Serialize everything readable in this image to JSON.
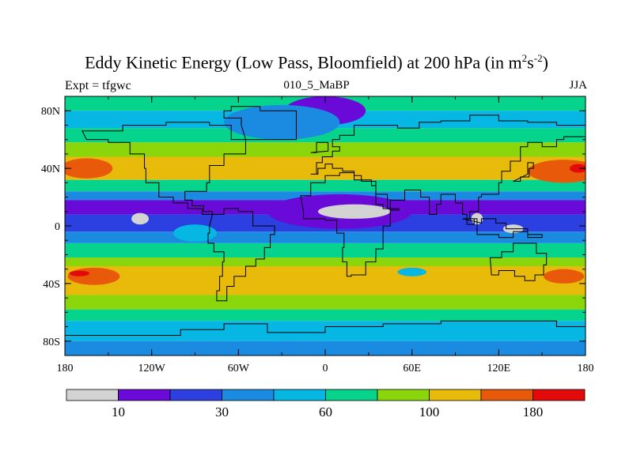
{
  "title_main": "Eddy Kinetic Energy (Low Pass, Bloomfield) at 200 hPa (in m",
  "title_unit_sup1": "2",
  "title_unit_mid": "s",
  "title_unit_sup2": "-2",
  "title_close": ")",
  "subtitle_left": "Expt = tfgwc",
  "subtitle_center": "010_5_MaBP",
  "subtitle_right": "JJA",
  "chart_data": {
    "type": "heatmap",
    "title": "Eddy Kinetic Energy (Low Pass, Bloomfield) at 200 hPa (in m^2 s^-2)",
    "x_ticks": [
      "180",
      "120W",
      "60W",
      "0",
      "60E",
      "120E",
      "180"
    ],
    "x_tick_values": [
      -180,
      -120,
      -60,
      0,
      60,
      120,
      180
    ],
    "y_ticks": [
      "80N",
      "40N",
      "0",
      "40S",
      "80S"
    ],
    "y_tick_values": [
      80,
      40,
      0,
      -40,
      -80
    ],
    "xlim": [
      -180,
      180
    ],
    "ylim": [
      -90,
      90
    ],
    "colorbar": {
      "levels": [
        10,
        20,
        30,
        45,
        60,
        80,
        100,
        140,
        180
      ],
      "labels": [
        "10",
        "30",
        "60",
        "100",
        "180"
      ],
      "label_positions": [
        1,
        3,
        5,
        7,
        9
      ],
      "colors": [
        "#d3d3d3",
        "#6a0ad8",
        "#2c3fe0",
        "#1a8be0",
        "#06b6e3",
        "#06d38c",
        "#8ad60a",
        "#e8bb0a",
        "#e85a0a",
        "#e50a0a"
      ]
    },
    "zonal_bands": [
      {
        "lat_range": [
          90,
          80
        ],
        "level_index": 5
      },
      {
        "lat_range": [
          80,
          68
        ],
        "level_index": 4
      },
      {
        "lat_range": [
          68,
          58
        ],
        "level_index": 5
      },
      {
        "lat_range": [
          58,
          48
        ],
        "level_index": 6
      },
      {
        "lat_range": [
          48,
          32
        ],
        "level_index": 7
      },
      {
        "lat_range": [
          32,
          24
        ],
        "level_index": 5
      },
      {
        "lat_range": [
          24,
          18
        ],
        "level_index": 3
      },
      {
        "lat_range": [
          18,
          8
        ],
        "level_index": 1
      },
      {
        "lat_range": [
          8,
          -4
        ],
        "level_index": 2
      },
      {
        "lat_range": [
          -4,
          -12
        ],
        "level_index": 3
      },
      {
        "lat_range": [
          -12,
          -22
        ],
        "level_index": 5
      },
      {
        "lat_range": [
          -22,
          -28
        ],
        "level_index": 6
      },
      {
        "lat_range": [
          -28,
          -48
        ],
        "level_index": 7
      },
      {
        "lat_range": [
          -48,
          -58
        ],
        "level_index": 6
      },
      {
        "lat_range": [
          -58,
          -66
        ],
        "level_index": 5
      },
      {
        "lat_range": [
          -66,
          -80
        ],
        "level_index": 4
      },
      {
        "lat_range": [
          -80,
          -90
        ],
        "level_index": 3
      }
    ],
    "regional_features": [
      {
        "lon": -165,
        "lat": 40,
        "rx": 18,
        "ry": 7,
        "level_index": 8
      },
      {
        "lon": 165,
        "lat": 38,
        "rx": 25,
        "ry": 8,
        "level_index": 8
      },
      {
        "lon": 175,
        "lat": 40,
        "rx": 6,
        "ry": 3,
        "level_index": 9
      },
      {
        "lon": -160,
        "lat": -35,
        "rx": 18,
        "ry": 6,
        "level_index": 8
      },
      {
        "lon": -170,
        "lat": -33,
        "rx": 7,
        "ry": 2,
        "level_index": 9
      },
      {
        "lon": 165,
        "lat": -35,
        "rx": 14,
        "ry": 5,
        "level_index": 8
      },
      {
        "lon": 0,
        "lat": 80,
        "rx": 28,
        "ry": 10,
        "level_index": 1
      },
      {
        "lon": -30,
        "lat": 72,
        "rx": 40,
        "ry": 12,
        "level_index": 3
      },
      {
        "lon": 10,
        "lat": 10,
        "rx": 50,
        "ry": 12,
        "level_index": 1
      },
      {
        "lon": 20,
        "lat": 10,
        "rx": 25,
        "ry": 5,
        "level_index": 0
      },
      {
        "lon": -128,
        "lat": 5,
        "rx": 6,
        "ry": 4,
        "level_index": 0
      },
      {
        "lon": 105,
        "lat": 5,
        "rx": 4,
        "ry": 4,
        "level_index": 0
      },
      {
        "lon": 130,
        "lat": -2,
        "rx": 7,
        "ry": 3,
        "level_index": 0
      },
      {
        "lon": -90,
        "lat": -5,
        "rx": 15,
        "ry": 6,
        "level_index": 4
      },
      {
        "lon": 60,
        "lat": -32,
        "rx": 10,
        "ry": 3,
        "level_index": 4
      }
    ]
  }
}
